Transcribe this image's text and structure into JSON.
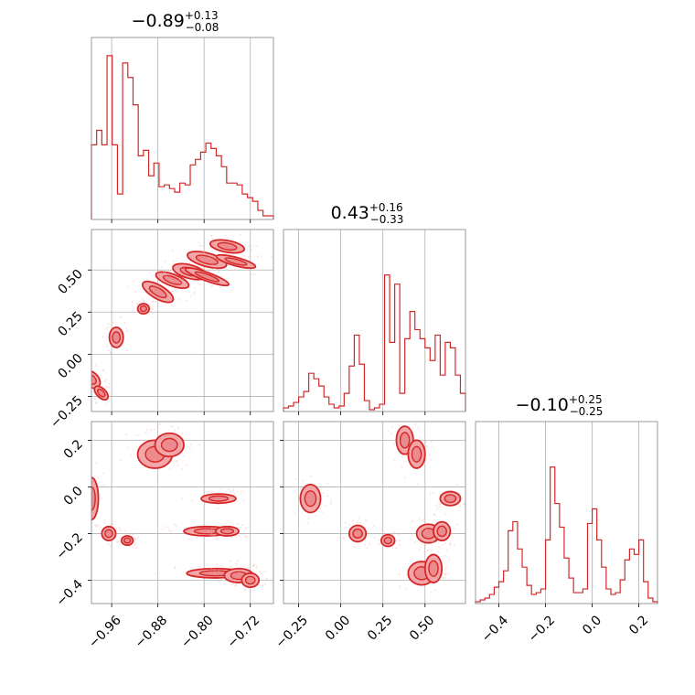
{
  "colors": {
    "series": "#d62728",
    "fill": "#f2a6a7",
    "scatter": "#f4b6b7",
    "grid": "#b0b0b0",
    "frame": "#808080"
  },
  "chart_data": {
    "type": "corner",
    "parameters": [
      {
        "title": {
          "median": "−0.89",
          "plus": "+0.13",
          "minus": "−0.08"
        }
      },
      {
        "title": {
          "median": "0.43",
          "plus": "+0.16",
          "minus": "−0.33"
        }
      },
      {
        "title": {
          "median": "−0.10",
          "plus": "+0.25",
          "minus": "−0.25"
        }
      }
    ],
    "ranges": [
      [
        -0.995,
        -0.68
      ],
      [
        -0.34,
        0.74
      ],
      [
        -0.5,
        0.28
      ]
    ],
    "ticks": [
      {
        "values": [
          -0.96,
          -0.88,
          -0.8,
          -0.72
        ],
        "labels": [
          "−0.96",
          "−0.88",
          "−0.80",
          "−0.72"
        ]
      },
      {
        "values": [
          -0.25,
          0.0,
          0.25,
          0.5
        ],
        "labels": [
          "−0.25",
          "0.00",
          "0.25",
          "0.50"
        ]
      },
      {
        "values": [
          -0.4,
          -0.2,
          0.0,
          0.2
        ],
        "labels": [
          "−0.4",
          "−0.2",
          "0.0",
          "0.2"
        ]
      }
    ],
    "grid": true,
    "histograms": [
      [
        0.41,
        0.49,
        0.41,
        0.9,
        0.41,
        0.14,
        0.86,
        0.78,
        0.63,
        0.35,
        0.38,
        0.24,
        0.31,
        0.18,
        0.19,
        0.17,
        0.15,
        0.2,
        0.19,
        0.3,
        0.33,
        0.37,
        0.42,
        0.39,
        0.35,
        0.29,
        0.2,
        0.2,
        0.19,
        0.14,
        0.12,
        0.1,
        0.05,
        0.02,
        0.02
      ],
      [
        0.02,
        0.03,
        0.05,
        0.08,
        0.11,
        0.21,
        0.18,
        0.14,
        0.08,
        0.04,
        0.02,
        0.03,
        0.1,
        0.25,
        0.42,
        0.26,
        0.06,
        0.01,
        0.02,
        0.04,
        0.75,
        0.38,
        0.7,
        0.1,
        0.4,
        0.55,
        0.45,
        0.4,
        0.35,
        0.28,
        0.42,
        0.2,
        0.38,
        0.35,
        0.2,
        0.1
      ],
      [
        0.01,
        0.02,
        0.03,
        0.05,
        0.09,
        0.12,
        0.18,
        0.4,
        0.45,
        0.3,
        0.2,
        0.1,
        0.05,
        0.06,
        0.08,
        0.35,
        0.75,
        0.55,
        0.42,
        0.25,
        0.14,
        0.06,
        0.06,
        0.08,
        0.44,
        0.52,
        0.35,
        0.2,
        0.08,
        0.05,
        0.06,
        0.13,
        0.24,
        0.3,
        0.27,
        0.35,
        0.12,
        0.03,
        0.01
      ]
    ],
    "pairs": [
      {
        "x": 0,
        "y": 1,
        "blobs": [
          [
            -0.995,
            -0.15,
            0.012,
            0.06,
            -45
          ],
          [
            -0.978,
            -0.23,
            0.008,
            0.05,
            -45
          ],
          [
            -0.952,
            0.1,
            0.012,
            0.06,
            0
          ],
          [
            -0.905,
            0.27,
            0.01,
            0.03,
            0
          ],
          [
            -0.88,
            0.37,
            0.03,
            0.04,
            30
          ],
          [
            -0.855,
            0.44,
            0.03,
            0.035,
            20
          ],
          [
            -0.825,
            0.49,
            0.03,
            0.04,
            15
          ],
          [
            -0.795,
            0.56,
            0.035,
            0.04,
            15
          ],
          [
            -0.76,
            0.64,
            0.03,
            0.035,
            10
          ],
          [
            -0.795,
            0.46,
            0.04,
            0.025,
            20
          ],
          [
            -0.745,
            0.55,
            0.035,
            0.025,
            15
          ]
        ]
      },
      {
        "x": 0,
        "y": 2,
        "blobs": [
          [
            -0.995,
            -0.05,
            0.012,
            0.09,
            0
          ],
          [
            -0.965,
            -0.2,
            0.012,
            0.03,
            0
          ],
          [
            -0.933,
            -0.23,
            0.01,
            0.02,
            0
          ],
          [
            -0.885,
            0.14,
            0.03,
            0.06,
            0
          ],
          [
            -0.86,
            0.18,
            0.025,
            0.05,
            0
          ],
          [
            -0.775,
            -0.05,
            0.03,
            0.02,
            0
          ],
          [
            -0.795,
            -0.19,
            0.04,
            0.02,
            0
          ],
          [
            -0.76,
            -0.19,
            0.02,
            0.02,
            0
          ],
          [
            -0.78,
            -0.37,
            0.05,
            0.02,
            0
          ],
          [
            -0.74,
            -0.38,
            0.025,
            0.03,
            0
          ],
          [
            -0.72,
            -0.4,
            0.015,
            0.03,
            0
          ]
        ]
      },
      {
        "x": 1,
        "y": 2,
        "blobs": [
          [
            -0.18,
            -0.05,
            0.06,
            0.06,
            0
          ],
          [
            0.1,
            -0.2,
            0.05,
            0.035,
            0
          ],
          [
            0.28,
            -0.23,
            0.04,
            0.025,
            0
          ],
          [
            0.38,
            0.2,
            0.05,
            0.06,
            0
          ],
          [
            0.45,
            0.14,
            0.05,
            0.06,
            0
          ],
          [
            0.65,
            -0.05,
            0.06,
            0.03,
            0
          ],
          [
            0.52,
            -0.2,
            0.07,
            0.04,
            0
          ],
          [
            0.6,
            -0.19,
            0.05,
            0.04,
            0
          ],
          [
            0.48,
            -0.37,
            0.08,
            0.05,
            0
          ],
          [
            0.55,
            -0.35,
            0.05,
            0.06,
            0
          ]
        ]
      }
    ]
  }
}
